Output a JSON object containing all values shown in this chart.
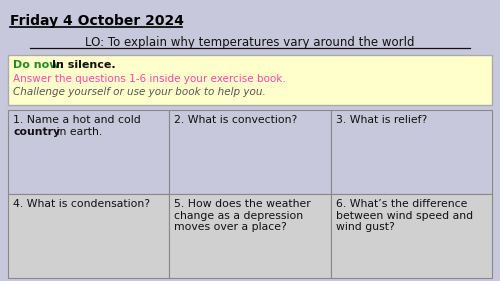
{
  "background_color": "#c8c8dc",
  "title_date": "Friday 4 October 2024",
  "title_lo": "LO: To explain why temperatures vary around the world",
  "do_now_bg": "#ffffcc",
  "do_now_label": "Do now: ",
  "do_now_bold": "In silence.",
  "do_now_line2": "Answer the questions 1-6 inside your exercise book.",
  "do_now_line3": "Challenge yourself or use your book to help you.",
  "do_now_line2_color": "#ff44aa",
  "do_now_line3_color": "#555555",
  "do_now_label_color": "#228B22",
  "do_now_bold_color": "#111111",
  "table_bg_top": "#c8c8dc",
  "table_bg_bottom": "#d0d0d0",
  "table_border_color": "#888888",
  "cell_q1_line1": "1. Name a hot and cold",
  "cell_q1_bold": "country",
  "cell_q1_rest": " in earth.",
  "cell_questions_top": [
    "2. What is convection?",
    "3. What is relief?"
  ],
  "cell_questions_bottom": [
    "4. What is condensation?",
    "5. How does the weather\nchange as a depression\nmoves over a place?",
    "6. What’s the difference\nbetween wind speed and\nwind gust?"
  ]
}
